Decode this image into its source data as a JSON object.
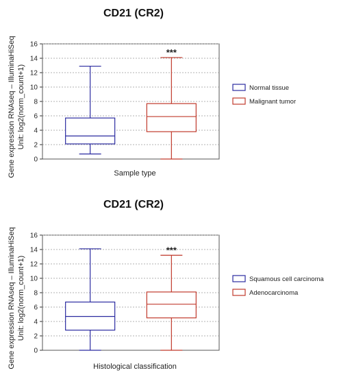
{
  "chart_data": [
    {
      "type": "box",
      "title": "CD21 (CR2)",
      "xlabel": "Sample type",
      "ylabel": "Gene expression RNAseq – IlluminaHiSeq",
      "ylabel2": "Unit: log2(norm_count+1)",
      "ylim": [
        0,
        16
      ],
      "yticks": [
        0,
        2,
        4,
        6,
        8,
        10,
        12,
        14,
        16
      ],
      "grid": true,
      "legend_position": "right",
      "significance": "***",
      "series": [
        {
          "name": "Normal tissue",
          "color": "#2b2ba0",
          "min": 0.7,
          "q1": 2.1,
          "median": 3.2,
          "q3": 5.7,
          "max": 12.9
        },
        {
          "name": "Malignant tumor",
          "color": "#c0392b",
          "min": 0.0,
          "q1": 3.8,
          "median": 5.9,
          "q3": 7.7,
          "max": 14.1
        }
      ]
    },
    {
      "type": "box",
      "title": "CD21 (CR2)",
      "xlabel": "Histological classification",
      "ylabel": "Gene expression RNAseq – IlluminaHiSeq",
      "ylabel2": "Unit: log2(norm_count+1)",
      "ylim": [
        0,
        16
      ],
      "yticks": [
        0,
        2,
        4,
        6,
        8,
        10,
        12,
        14,
        16
      ],
      "grid": true,
      "legend_position": "right",
      "significance": "***",
      "series": [
        {
          "name": "Squamous cell carcinoma",
          "color": "#2b2ba0",
          "min": 0.0,
          "q1": 2.8,
          "median": 4.7,
          "q3": 6.7,
          "max": 14.1
        },
        {
          "name": "Adenocarcinoma",
          "color": "#c0392b",
          "min": 0.0,
          "q1": 4.5,
          "median": 6.4,
          "q3": 8.1,
          "max": 13.2
        }
      ]
    }
  ]
}
